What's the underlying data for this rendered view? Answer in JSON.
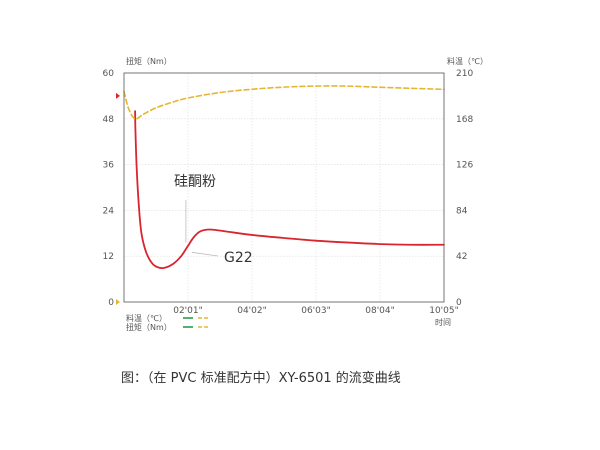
{
  "chart_data": {
    "type": "line",
    "caption": "图：（在 PVC 标准配方中）XY-6501 的流变曲线",
    "y_left_label": "扭矩（Nm）",
    "y_right_label": "料温（℃）",
    "x_label": "时间",
    "x_range_minutes": [
      0,
      10.083
    ],
    "y_left_range": [
      0,
      60
    ],
    "y_right_range": [
      0,
      210
    ],
    "y_left_ticks": [
      "0",
      "12",
      "24",
      "36",
      "48",
      "60"
    ],
    "y_right_ticks": [
      "0",
      "42",
      "84",
      "126",
      "168",
      "210"
    ],
    "x_ticks": [
      {
        "t": 2.017,
        "label": "02'01\""
      },
      {
        "t": 4.033,
        "label": "04'02\""
      },
      {
        "t": 6.05,
        "label": "06'03\""
      },
      {
        "t": 8.067,
        "label": "08'04\""
      },
      {
        "t": 10.083,
        "label": "10'05\""
      }
    ],
    "grid": true,
    "legend_placement": "bottom-left",
    "legend": [
      {
        "label": "料温（℃）",
        "color_a": "#2a9d4a",
        "color_b": "#e8b530"
      },
      {
        "label": "扭矩（Nm）",
        "color_a": "#2a9d4a",
        "color_b": "#e8b530"
      }
    ],
    "annotations": [
      {
        "text": "硅酮粉",
        "t": 1.95,
        "value": 14
      },
      {
        "text": "G22",
        "t": 1.95,
        "value": 12.5
      }
    ],
    "series": [
      {
        "axis": "left",
        "color": "#d9252e",
        "style": "solid",
        "points": [
          [
            0.35,
            50
          ],
          [
            0.36,
            45
          ],
          [
            0.4,
            35
          ],
          [
            0.47,
            25
          ],
          [
            0.55,
            18
          ],
          [
            0.7,
            13
          ],
          [
            0.9,
            10
          ],
          [
            1.1,
            9
          ],
          [
            1.3,
            9
          ],
          [
            1.55,
            10
          ],
          [
            1.8,
            12
          ],
          [
            2.0,
            14.5
          ],
          [
            2.2,
            17
          ],
          [
            2.4,
            18.5
          ],
          [
            2.7,
            19
          ],
          [
            3.2,
            18.5
          ],
          [
            4.0,
            17.6
          ],
          [
            5.0,
            16.8
          ],
          [
            6.0,
            16.1
          ],
          [
            7.0,
            15.6
          ],
          [
            8.0,
            15.2
          ],
          [
            9.0,
            15.0
          ],
          [
            10.08,
            15.0
          ]
        ]
      },
      {
        "axis": "right",
        "color": "#e8b530",
        "style": "dashed",
        "points": [
          [
            0.0,
            193
          ],
          [
            0.15,
            177
          ],
          [
            0.35,
            168
          ],
          [
            0.6,
            172
          ],
          [
            1.0,
            178
          ],
          [
            1.5,
            183
          ],
          [
            2.0,
            187
          ],
          [
            3.0,
            192
          ],
          [
            4.0,
            195
          ],
          [
            5.0,
            197
          ],
          [
            6.0,
            198
          ],
          [
            7.0,
            198
          ],
          [
            8.0,
            197
          ],
          [
            9.0,
            196
          ],
          [
            10.08,
            195
          ]
        ]
      }
    ],
    "markers": [
      {
        "axis": "left",
        "value": 54,
        "color": "#d9252e"
      },
      {
        "axis": "left",
        "value": 0,
        "color": "#e8b530"
      }
    ]
  }
}
